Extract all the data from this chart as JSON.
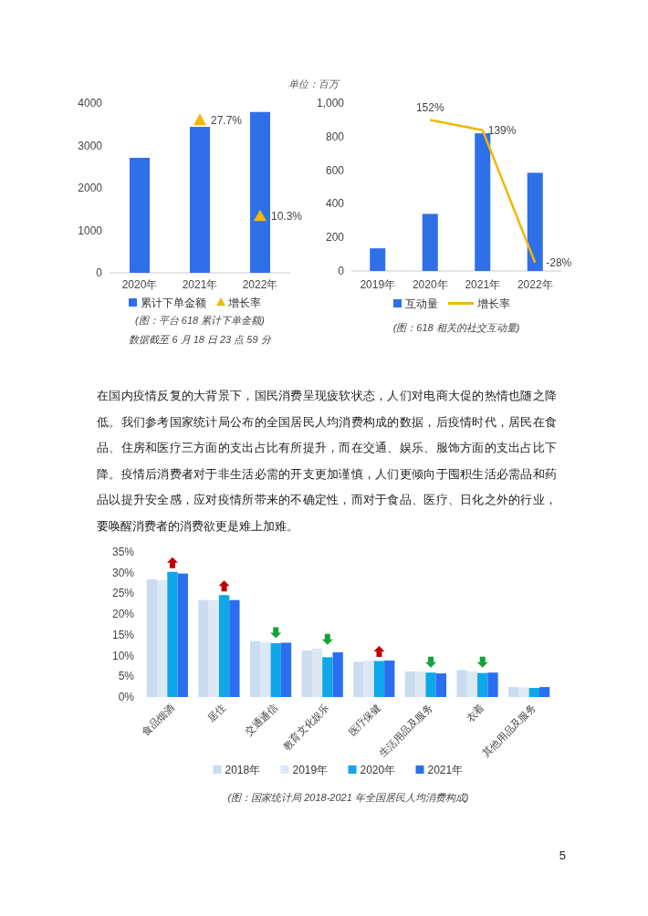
{
  "chart_data": [
    {
      "type": "bar",
      "categories": [
        "2020年",
        "2021年",
        "2022年"
      ],
      "series": [
        {
          "name": "累计下单金额",
          "color": "#2f6fe8",
          "values": [
            2710,
            3440,
            3790
          ]
        },
        {
          "name": "增长率",
          "type": "scatter",
          "axis": "y2",
          "marker": "triangle",
          "color": "#f2b705",
          "values": [
            null,
            27.7,
            10.3
          ],
          "value_labels": [
            null,
            "27.7%",
            "10.3%"
          ]
        }
      ],
      "ylim": [
        0,
        4000
      ],
      "yticks": [
        0,
        1000,
        2000,
        3000,
        4000
      ],
      "legend": "bottom",
      "annotations": [
        "(图：平台 618 累计下单金额)",
        "数据截至 6 月 18 日 23 点 59 分"
      ]
    },
    {
      "type": "bar",
      "ylabel": "单位：百万",
      "categories": [
        "2019年",
        "2020年",
        "2021年",
        "2022年"
      ],
      "series": [
        {
          "name": "互动量",
          "color": "#2f6fe8",
          "values": [
            135,
            340,
            820,
            585
          ]
        },
        {
          "name": "增长率",
          "type": "line",
          "axis": "y2",
          "color": "#f2b705",
          "values": [
            null,
            152,
            139,
            -28
          ],
          "value_labels": [
            null,
            "152%",
            "139%",
            "-28%"
          ]
        }
      ],
      "ylim": [
        0,
        1000
      ],
      "yticks": [
        0,
        200,
        400,
        600,
        800,
        {
          "value": 1000,
          "label": "1,000"
        }
      ],
      "legend": "bottom",
      "annotations": [
        "(图：618 相关的社交互动量)"
      ]
    },
    {
      "type": "other",
      "annotations": [
        "在国内疫情反复的大背景下，国民消费呈现疲软状态，人们对电商大促的热情也随之降低。我们参考国家统计局公布的全国居民人均消费构成的数据，后疫情时代，居民在食品、住房和医疗三方面的支出占比有所提升，而在交通、娱乐、服饰方面的支出占比下降。疫情后消费者对于非生活必需的开支更加谨慎，人们更倾向于囤积生活必需品和药品以提升安全感，应对疫情所带来的不确定性，而对于食品、医疗、日化之外的行业，要唤醒消费者的消费欲更是难上加难。"
      ]
    },
    {
      "type": "bar",
      "categories": [
        "食品烟酒",
        "居住",
        "交通通信",
        "教育文化娱乐",
        "医疗保健",
        "生活用品及服务",
        "衣着",
        "其他用品及服务"
      ],
      "series": [
        {
          "name": "2018年",
          "color": "#c9dcf0",
          "values": [
            28.4,
            23.4,
            13.5,
            11.2,
            8.5,
            6.2,
            6.5,
            2.4
          ]
        },
        {
          "name": "2019年",
          "color": "#dce8f4",
          "values": [
            28.2,
            23.4,
            13.3,
            11.7,
            8.8,
            6.2,
            6.2,
            2.3
          ]
        },
        {
          "name": "2020年",
          "color": "#0fa6ea",
          "values": [
            30.2,
            24.6,
            13.0,
            9.6,
            8.7,
            5.9,
            5.8,
            2.2
          ]
        },
        {
          "name": "2021年",
          "color": "#2a6ff0",
          "values": [
            29.8,
            23.4,
            13.1,
            10.8,
            8.8,
            5.7,
            5.9,
            2.4
          ]
        }
      ],
      "ylim": [
        0,
        35
      ],
      "yticks": [
        {
          "value": 0,
          "label": "0%"
        },
        {
          "value": 5,
          "label": "5%"
        },
        {
          "value": 10,
          "label": "10%"
        },
        {
          "value": 15,
          "label": "15%"
        },
        {
          "value": 20,
          "label": "20%"
        },
        {
          "value": 25,
          "label": "25%"
        },
        {
          "value": 30,
          "label": "30%"
        },
        {
          "value": 35,
          "label": "35%"
        }
      ],
      "legend": "bottom",
      "annotations": [
        "(图：国家统计局 2018-2021 年全国居民人均消费构成)"
      ]
    },
    {
      "type": "other",
      "annotations": [
        "5"
      ]
    }
  ]
}
